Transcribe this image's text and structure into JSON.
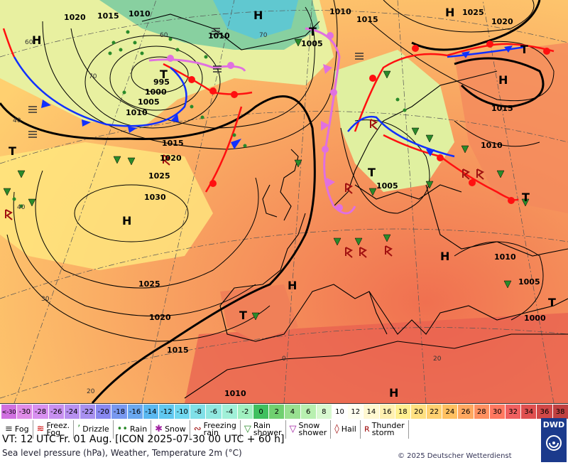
{
  "map": {
    "pressure_labels": [
      {
        "text": "1020",
        "k": "a"
      },
      {
        "text": "1015",
        "k": "b"
      },
      {
        "text": "1010",
        "k": "c"
      },
      {
        "text": "1010",
        "k": "d"
      },
      {
        "text": "1005",
        "k": "e"
      },
      {
        "text": "1010",
        "k": "f"
      },
      {
        "text": "1015",
        "k": "g"
      },
      {
        "text": "1025",
        "k": "h"
      },
      {
        "text": "1020",
        "k": "i"
      },
      {
        "text": "995",
        "k": "j"
      },
      {
        "text": "1000",
        "k": "k"
      },
      {
        "text": "1005",
        "k": "l"
      },
      {
        "text": "1010",
        "k": "m"
      },
      {
        "text": "1015",
        "k": "n"
      },
      {
        "text": "1020",
        "k": "o"
      },
      {
        "text": "1025",
        "k": "p"
      },
      {
        "text": "1030",
        "k": "q"
      },
      {
        "text": "1015",
        "k": "r"
      },
      {
        "text": "1010",
        "k": "s"
      },
      {
        "text": "1005",
        "k": "t"
      },
      {
        "text": "1010",
        "k": "u"
      },
      {
        "text": "1005",
        "k": "v"
      },
      {
        "text": "1000",
        "k": "w"
      },
      {
        "text": "1025",
        "k": "x"
      },
      {
        "text": "1020",
        "k": "y"
      },
      {
        "text": "1015",
        "k": "z"
      },
      {
        "text": "1010",
        "k": "aa"
      }
    ],
    "centers": [
      "H",
      "H",
      "T",
      "T",
      "H",
      "T",
      "H",
      "T",
      "H",
      "H",
      "T",
      "T",
      "H",
      "T",
      "T",
      "H"
    ],
    "lat_labels": [
      "60",
      "70",
      "60",
      "40",
      "70",
      "40",
      "30",
      "20",
      "0",
      "20"
    ]
  },
  "legend": {
    "temp_scale": [
      "<-30",
      "-30",
      "-28",
      "-26",
      "-24",
      "-22",
      "-20",
      "-18",
      "-16",
      "-14",
      "-12",
      "-10",
      "-8",
      "-6",
      "-4",
      "-2",
      "0",
      "2",
      "4",
      "6",
      "8",
      "10",
      "12",
      "14",
      "16",
      "18",
      "20",
      "22",
      "24",
      "26",
      "28",
      "30",
      "32",
      "34",
      "36",
      "38",
      "≥40 °C"
    ],
    "temp_colors": [
      "#d070e0",
      "#e08ce8",
      "#d890f0",
      "#c890f0",
      "#b890f0",
      "#a890f0",
      "#8888f0",
      "#7898f0",
      "#6aa8f0",
      "#5ab8f0",
      "#60c8f0",
      "#70d8f0",
      "#80e0e8",
      "#90e8e0",
      "#a0f0d8",
      "#a0f0c0",
      "#40c060",
      "#70d070",
      "#98e090",
      "#b8f0b0",
      "#d8f8d0",
      "#ffffff",
      "#fffff0",
      "#fff8d0",
      "#fff0b0",
      "#fff090",
      "#ffe080",
      "#ffd070",
      "#ffc060",
      "#ffa860",
      "#ff9060",
      "#ff7860",
      "#f06060",
      "#e05050",
      "#d04848",
      "#c04040",
      "#b83838"
    ],
    "weather": [
      {
        "label": "Fog",
        "sym": "≡"
      },
      {
        "label": "Freez.\nFog",
        "sym": "≋"
      },
      {
        "label": "Drizzle",
        "sym": "ʼ"
      },
      {
        "label": "Rain",
        "sym": "••"
      },
      {
        "label": "Snow",
        "sym": "✱"
      },
      {
        "label": "Freezing\nrain",
        "sym": "∾"
      },
      {
        "label": "Rain\nshower",
        "sym": "▽"
      },
      {
        "label": "Snow\nshower",
        "sym": "▽"
      },
      {
        "label": "Hail",
        "sym": "◊"
      },
      {
        "label": "Thunder\nstorm",
        "sym": "ʀ"
      }
    ],
    "valid_time": "VT: 12 UTC Fr.  01 Aug. [ICON 2025-07-30  00 UTC + 60 h]",
    "subtitle": "Sea level pressure (hPa), Weather, Temperature 2m (°C)",
    "copyright": "© 2025 Deutscher Wetterdienst",
    "logo": "DWD"
  }
}
